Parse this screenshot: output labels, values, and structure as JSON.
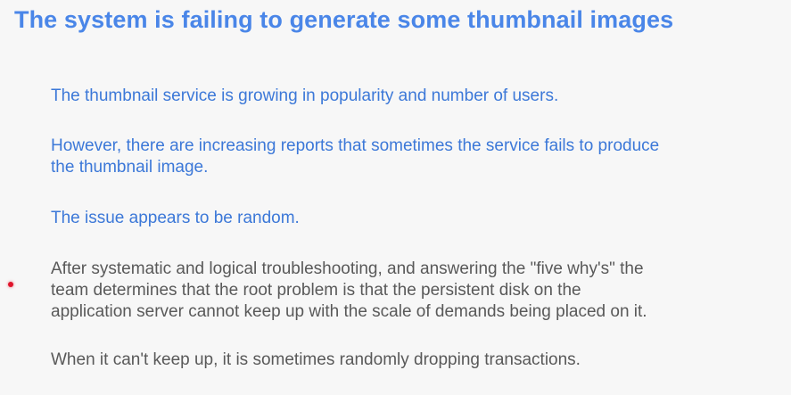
{
  "slide": {
    "title": "The system is failing to generate some thumbnail images",
    "paragraphs": [
      {
        "lines": [
          "The thumbnail service is growing in popularity and number of users."
        ],
        "color": "#3c78d8"
      },
      {
        "lines": [
          "However, there are increasing reports that sometimes the service fails to produce",
          "the thumbnail image."
        ],
        "color": "#3c78d8"
      },
      {
        "lines": [
          "The issue appears to be random."
        ],
        "color": "#3c78d8"
      },
      {
        "lines": [
          "After systematic and logical troubleshooting, and answering the \"five why's\" the",
          "team determines that the root problem is that the persistent disk on the",
          "application server cannot keep up with the scale of demands being placed on it."
        ],
        "color": "#595959"
      },
      {
        "lines": [
          "When it can't keep up, it is sometimes randomly dropping transactions."
        ],
        "color": "#595959"
      }
    ],
    "accent_color": "#4a86e8",
    "pointer_color": "#e0142b"
  }
}
